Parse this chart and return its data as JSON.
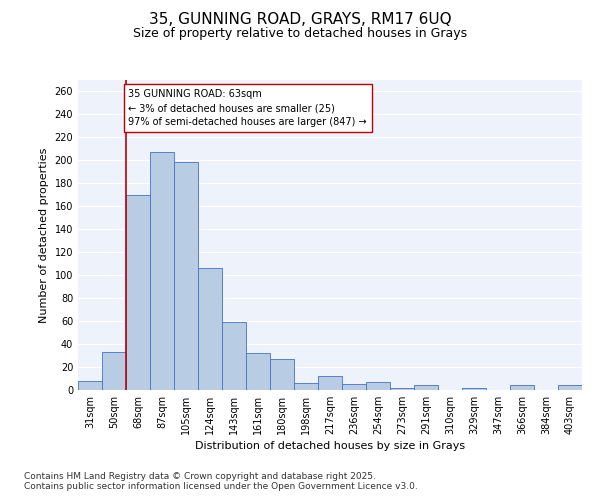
{
  "title1": "35, GUNNING ROAD, GRAYS, RM17 6UQ",
  "title2": "Size of property relative to detached houses in Grays",
  "xlabel": "Distribution of detached houses by size in Grays",
  "ylabel": "Number of detached properties",
  "categories": [
    "31sqm",
    "50sqm",
    "68sqm",
    "87sqm",
    "105sqm",
    "124sqm",
    "143sqm",
    "161sqm",
    "180sqm",
    "198sqm",
    "217sqm",
    "236sqm",
    "254sqm",
    "273sqm",
    "291sqm",
    "310sqm",
    "329sqm",
    "347sqm",
    "366sqm",
    "384sqm",
    "403sqm"
  ],
  "values": [
    8,
    33,
    170,
    207,
    199,
    106,
    59,
    32,
    27,
    6,
    12,
    5,
    7,
    2,
    4,
    0,
    2,
    0,
    4,
    0,
    4
  ],
  "bar_color": "#b8cce4",
  "bar_edge_color": "#4472c4",
  "vline_color": "#c00000",
  "annotation_text": "35 GUNNING ROAD: 63sqm\n← 3% of detached houses are smaller (25)\n97% of semi-detached houses are larger (847) →",
  "annotation_box_color": "#ffffff",
  "annotation_box_edge": "#c00000",
  "ylim": [
    0,
    270
  ],
  "yticks": [
    0,
    20,
    40,
    60,
    80,
    100,
    120,
    140,
    160,
    180,
    200,
    220,
    240,
    260
  ],
  "background_color": "#eef2fb",
  "footer1": "Contains HM Land Registry data © Crown copyright and database right 2025.",
  "footer2": "Contains public sector information licensed under the Open Government Licence v3.0.",
  "title_fontsize": 11,
  "subtitle_fontsize": 9,
  "axis_label_fontsize": 8,
  "tick_fontsize": 7,
  "footer_fontsize": 6.5,
  "annotation_fontsize": 7
}
